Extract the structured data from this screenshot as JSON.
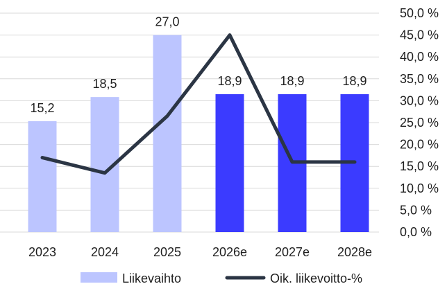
{
  "chart_data": {
    "type": "bar",
    "categories": [
      "2023",
      "2024",
      "2025",
      "2026e",
      "2027e",
      "2028e"
    ],
    "series": [
      {
        "name": "Liikevaihto",
        "type": "bar",
        "values": [
          15.2,
          18.5,
          27.0,
          18.9,
          18.9,
          18.9
        ],
        "value_labels": [
          "15,2",
          "18,5",
          "27,0",
          "18,9",
          "18,9",
          "18,9"
        ],
        "colors": [
          "#bcc5ff",
          "#bcc5ff",
          "#bcc5ff",
          "#3b3bff",
          "#3b3bff",
          "#3b3bff"
        ]
      },
      {
        "name": "Oik. liikevoitto-%",
        "type": "line",
        "axis": "right",
        "values": [
          17.0,
          13.5,
          26.5,
          45.0,
          16.0,
          16.0
        ],
        "color": "#2b3544"
      }
    ],
    "right_axis": {
      "ticks": [
        "50,0 %",
        "45,0 %",
        "40,0 %",
        "35,0 %",
        "30,0 %",
        "25,0 %",
        "20,0 %",
        "15,0 %",
        "10,0 %",
        "5,0 %",
        "0,0 %"
      ],
      "range": [
        0,
        50
      ]
    },
    "left_axis_range": [
      0,
      30
    ],
    "grid": true,
    "legend_position": "bottom"
  }
}
